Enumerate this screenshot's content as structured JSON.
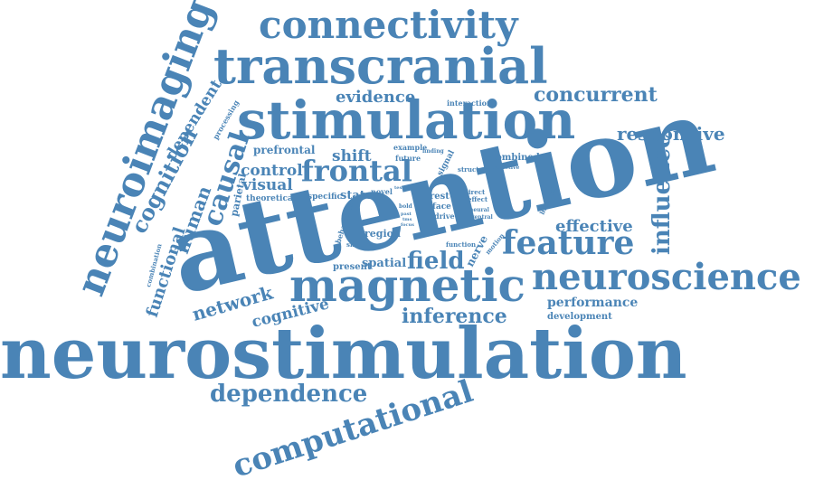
{
  "color": "#4a84b6",
  "words": {
    "neurostimulation": "neurostimulation",
    "attention": "attention",
    "stimulation": "stimulation",
    "transcranial": "transcranial",
    "magnetic": "magnetic",
    "neuroscience": "neuroscience",
    "connectivity": "connectivity",
    "neuroimaging": "neuroimaging",
    "frontal": "frontal",
    "feature": "feature",
    "computational": "computational",
    "dependence": "dependence",
    "cognition": "cognition",
    "causal": "causal",
    "concurrent": "concurrent",
    "responsive": "responsive",
    "influence": "influence",
    "network": "network",
    "field": "field",
    "inference": "inference",
    "human": "human",
    "functional": "functional",
    "dependent": "dependent",
    "evidence": "evidence",
    "effective": "effective",
    "shift": "shift",
    "control": "control",
    "visual": "visual",
    "cognitive": "cognitive",
    "performance": "performance",
    "development": "development",
    "spatial": "spatial",
    "prefrontal": "prefrontal",
    "state": "state",
    "region": "region",
    "present": "present",
    "nerve": "nerve",
    "parietal": "parietal",
    "processing": "processing",
    "combination": "combination",
    "theoretical": "theoretical",
    "specific": "specific",
    "behavioral": "behavioral",
    "shifting": "shifting",
    "novel": "novel",
    "rest": "rest",
    "face": "face",
    "drive": "drive",
    "bold": "bold",
    "past": "past",
    "tms": "tms",
    "focus": "focus",
    "example": "example",
    "future": "future",
    "finding": "finding",
    "signal": "signal",
    "interaction": "interaction",
    "combined": "combined",
    "structure": "structure",
    "selective": "selective",
    "direct": "direct",
    "effect": "effect",
    "neural": "neural",
    "ventral": "ventral",
    "bilateral": "bilateral",
    "function": "function",
    "motion": "motion",
    "test": "test"
  }
}
